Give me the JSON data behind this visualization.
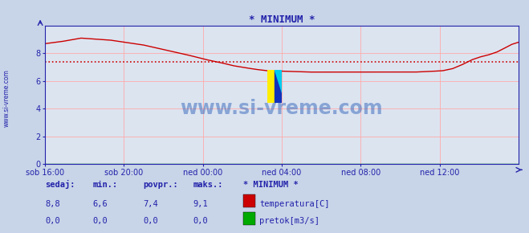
{
  "title": "* MINIMUM *",
  "background_color": "#c8d4e8",
  "plot_bg_color": "#dce4f0",
  "grid_color": "#ffaaaa",
  "axis_color": "#2222aa",
  "line_color": "#cc0000",
  "pretok_color": "#00aa00",
  "avg_line_color": "#cc0000",
  "avg_line_value": 7.4,
  "ylim": [
    0,
    10
  ],
  "yticks": [
    0,
    2,
    4,
    6,
    8
  ],
  "x_labels": [
    "sob 16:00",
    "sob 20:00",
    "ned 00:00",
    "ned 04:00",
    "ned 08:00",
    "ned 12:00"
  ],
  "x_positions": [
    0,
    48,
    96,
    144,
    192,
    240
  ],
  "total_points": 289,
  "watermark_text": "www.si-vreme.com",
  "watermark_color": "#3366bb",
  "watermark_alpha": 0.5,
  "left_label": "www.si-vreme.com",
  "legend_title": "* MINIMUM *",
  "legend_items": [
    {
      "label": "temperatura[C]",
      "color": "#cc0000"
    },
    {
      "label": "pretok[m3/s]",
      "color": "#00aa00"
    }
  ],
  "table_headers": [
    "sedaj:",
    "min.:",
    "povpr.:",
    "maks.:"
  ],
  "table_row1": [
    "8,8",
    "6,6",
    "7,4",
    "9,1"
  ],
  "table_row2": [
    "0,0",
    "0,0",
    "0,0",
    "0,0"
  ],
  "temp_keypoints_x": [
    0,
    10,
    22,
    40,
    60,
    75,
    88,
    98,
    108,
    115,
    120,
    128,
    135,
    148,
    160,
    175,
    190,
    205,
    215,
    225,
    235,
    242,
    248,
    254,
    260,
    265,
    270,
    275,
    280,
    284,
    288
  ],
  "temp_keypoints_y": [
    8.7,
    8.85,
    9.1,
    8.95,
    8.6,
    8.2,
    7.85,
    7.55,
    7.3,
    7.1,
    7.0,
    6.85,
    6.75,
    6.7,
    6.65,
    6.65,
    6.65,
    6.65,
    6.65,
    6.65,
    6.7,
    6.75,
    6.9,
    7.2,
    7.55,
    7.75,
    7.9,
    8.1,
    8.4,
    8.65,
    8.8
  ]
}
